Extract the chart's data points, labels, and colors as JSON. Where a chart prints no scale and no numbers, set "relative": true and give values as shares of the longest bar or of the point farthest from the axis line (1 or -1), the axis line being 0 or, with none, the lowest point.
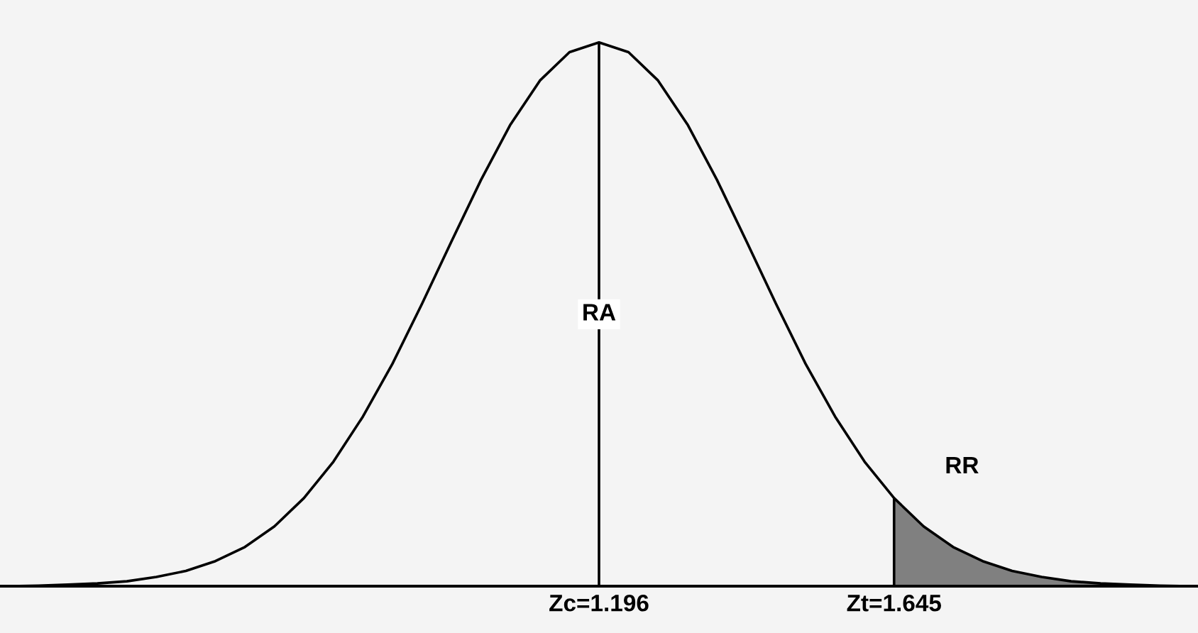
{
  "chart_data": {
    "type": "line",
    "relative": true,
    "tick_labels": false,
    "categories": [
      null,
      null,
      null,
      null,
      null,
      null,
      null,
      null,
      null,
      null,
      null,
      null,
      null,
      null,
      null,
      null,
      null,
      null,
      null,
      null,
      null,
      null,
      null,
      null,
      null,
      null,
      null,
      null,
      null,
      null,
      null,
      null,
      null,
      null,
      null,
      null,
      null,
      null,
      null,
      null,
      null
    ],
    "series": [
      {
        "color": "#000000",
        "values": [
          0,
          0.001,
          0.003,
          0.005,
          0.009,
          0.017,
          0.028,
          0.046,
          0.072,
          0.11,
          0.162,
          0.229,
          0.312,
          0.409,
          0.519,
          0.634,
          0.747,
          0.849,
          0.93,
          0.982,
          1,
          0.982,
          0.93,
          0.849,
          0.747,
          0.634,
          0.519,
          0.409,
          0.312,
          0.229,
          0.162,
          0.11,
          0.072,
          0.046,
          0.028,
          0.017,
          0.009,
          0.005,
          0.003,
          0.001,
          0
        ]
      },
      {
        "type": "area",
        "name": "RR",
        "color": "#808080",
        "values": [
          null,
          null,
          null,
          null,
          null,
          null,
          null,
          null,
          null,
          null,
          null,
          null,
          null,
          null,
          null,
          null,
          null,
          null,
          null,
          null,
          null,
          null,
          null,
          null,
          null,
          null,
          null,
          null,
          null,
          null,
          0.162,
          0.11,
          0.072,
          0.046,
          0.028,
          0.017,
          0.009,
          0.005,
          0.003,
          0.001,
          0
        ]
      }
    ],
    "annotations": [
      "RA",
      "Zc=1.196",
      "Zt=1.645"
    ]
  }
}
